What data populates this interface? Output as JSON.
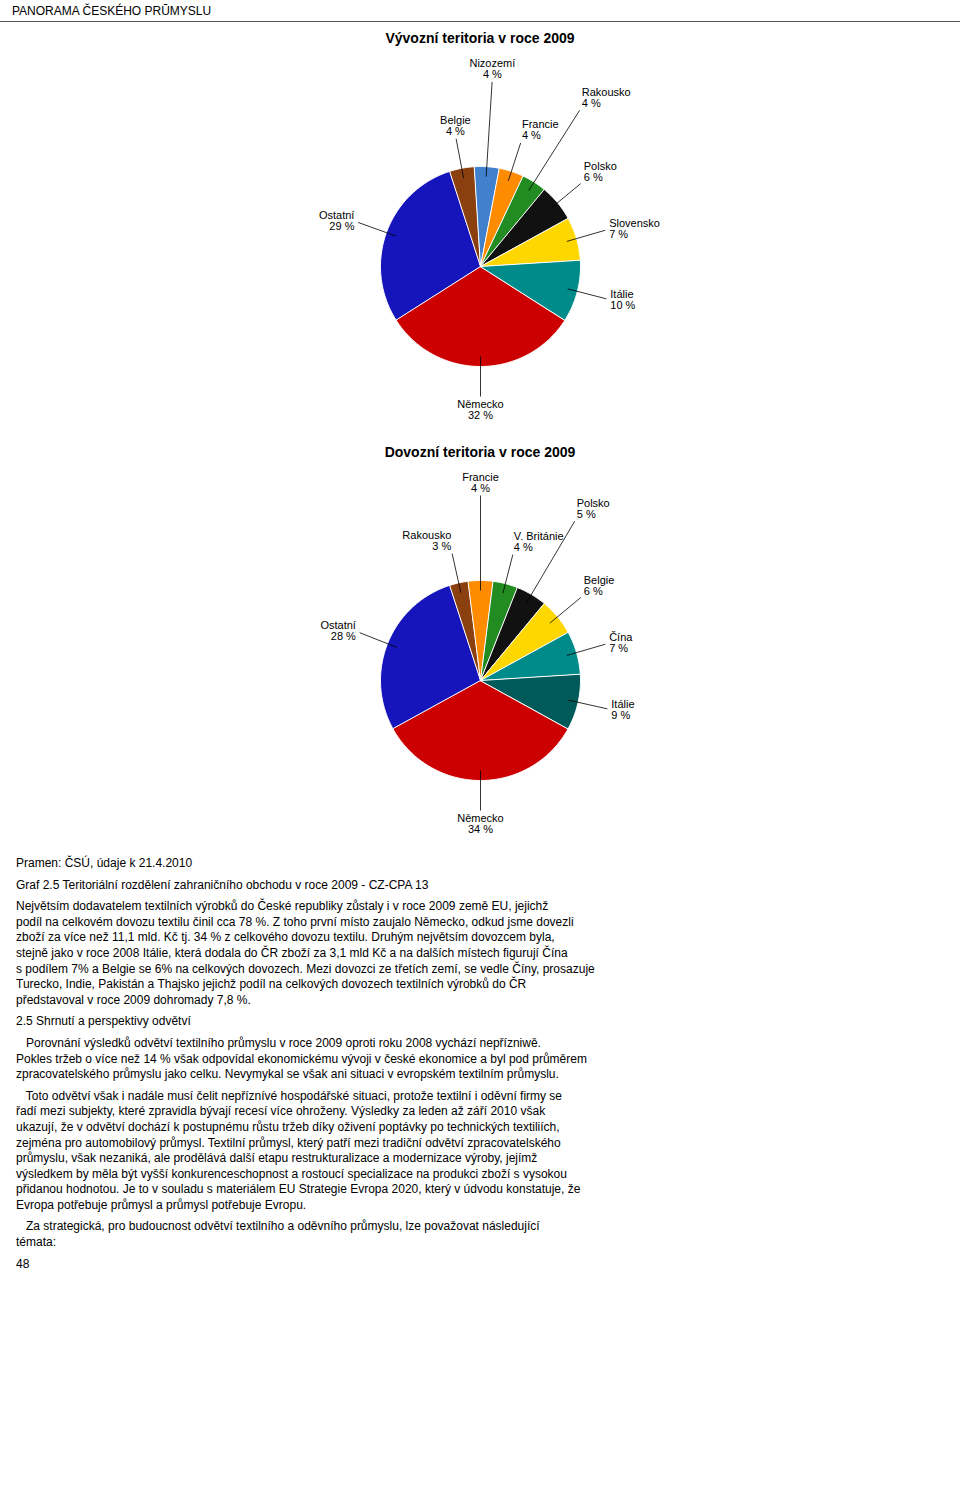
{
  "chart_data": [
    {
      "type": "pie",
      "title": "Vývozní teritoria v roce 2009",
      "categories": [
        "Německo",
        "Ostatní",
        "Belgie",
        "Nizozemí",
        "Francie",
        "Rakousko",
        "Polsko",
        "Slovensko",
        "Itálie"
      ],
      "values": [
        32,
        29,
        4,
        4,
        4,
        4,
        6,
        7,
        10
      ],
      "value_labels": [
        "32 %",
        "29 %",
        "4 %",
        "4 %",
        "4 %",
        "4 %",
        "6 %",
        "7 %",
        "10 %"
      ],
      "colors": [
        "#CC0000",
        "#1515BB",
        "#8B4010",
        "#4080CC",
        "#FF8C00",
        "#228B22",
        "#111111",
        "#FFD700",
        "#008B8B"
      ],
      "data_labels": true
    },
    {
      "type": "pie",
      "title": "Dovozní teritoria v roce 2009",
      "categories": [
        "Německo",
        "Ostatní",
        "Rakousko",
        "Francie",
        "V. Británie",
        "Polsko",
        "Belgie",
        "Čína",
        "Itálie"
      ],
      "values": [
        34,
        28,
        3,
        4,
        4,
        5,
        6,
        7,
        9
      ],
      "value_labels": [
        "34 %",
        "28 %",
        "3 %",
        "4 %",
        "4 %",
        "5 %",
        "6 %",
        "7 %",
        "9 %"
      ],
      "colors": [
        "#CC0000",
        "#1515BB",
        "#8B4010",
        "#FF8C00",
        "#228B22",
        "#111111",
        "#FFD700",
        "#008B8B",
        "#005A5A"
      ],
      "data_labels": true
    }
  ],
  "annotations": [
    "PANORAMA ČESKÉHO PRŪMYSLU",
    "Pramen: ČSÚ, údaje k 21.4.2010",
    "Graf 2.5 Teritoriální rozdělení zahraničního obchodu v roce 2009 - CZ-CPA 13",
    "Největsím dodavatelem textilních výrobků do České republiky zůstaly i v roce 2009 země EU, jejichž\npodíl na celkovém dovozu textilu činil cca 78 %. Z toho první místo zaujalo Německo, odkud jsme dovezli\nzboží za více než 11,1 mld. Kč tj. 34 % z celkového dovozu textilu. Druhým největsím dovozcem byla,\nstejně jako v roce 2008 Itálie, která dodala do ČR zboží za 3,1 mld Kč a na dalších místech figurují Čína\ns podílem 7% a Belgie se 6% na celkových dovozech. Mezi dovozci ze třetích zemí, se vedle Číny, prosazuje\nTurecko, Indie, Pakistán a Thajsko jejichž podíl na celkových dovozech textilních výrobků do ČR\npředstavoval v roce 2009 dohromady 7,8 %.",
    "2.5 Shrnutí a perspektivy odvětví",
    "   Porovnání výsledků odvětví textilního průmyslu v roce 2009 oproti roku 2008 vychází nepřízniwě.\nPokles tržeb o více než 14 % však odpovídal ekonomickému vývoji v české ekonomice a byl pod průměrem\nzpracovatelského průmyslu jako celku. Nevymykal se však ani situaci v evropském textilním průmyslu.",
    "   Toto odvětví však i nadále musí čelit nepříznívé hospodářské situaci, protože textilní i oděvní firmy se\nřadí mezi subjekty, které zpravidla bývají recesí více ohroženy. Výsledky za leden až září 2010 však\nukazují, že v odvětví dochází k postupnému růstu tržeb díky oživení poptávky po technických textiliích,\nzejména pro automobilový průmysl. Textilní průmysl, který patří mezi tradiční odvětví zpracovatelského\nprůmyslu, však nezaniká, ale prodělává další etapu restrukturalizace a modernizace výroby, jejímž\nvýsledkem by měla být vyšší konkurenceschopnost a rostoucí specializace na produkci zboží s vysokou\npřidanou hodnotou. Je to v souladu s materiálem EU Strategie Evropa 2020, který v údvodu konstatuje, že\nEvropa potřebuje průmysl a průmysl potřebuje Evropu.",
    "   Za strategická, pro budoucnost odvětví textilního a oděvního průmyslu, lze považovat následující\ntémata:",
    "48"
  ]
}
